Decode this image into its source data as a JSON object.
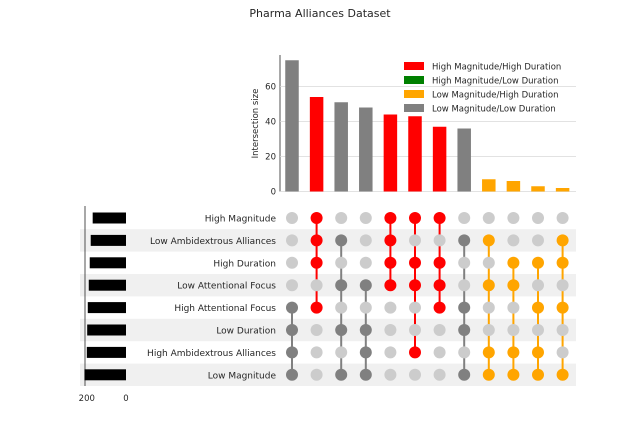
{
  "chart_data": {
    "type": "upset",
    "title": "Pharma Alliances Dataset",
    "ylabel": "Intersection size",
    "yticks": [
      0,
      20,
      40,
      60
    ],
    "ylim": [
      0,
      78
    ],
    "set_size_ticks": [
      200,
      0
    ],
    "set_size_max": 220,
    "legend": [
      {
        "label": "High Magnitude/High Duration",
        "color": "#ff0000"
      },
      {
        "label": "High Magnitude/Low Duration",
        "color": "#008000"
      },
      {
        "label": "Low Magnitude/High Duration",
        "color": "#ffa500"
      },
      {
        "label": "Low Magnitude/Low Duration",
        "color": "#808080"
      }
    ],
    "sets": [
      {
        "name": "High Magnitude",
        "size": 170
      },
      {
        "name": "Low Ambidextrous Alliances",
        "size": 180
      },
      {
        "name": "High Duration",
        "size": 185
      },
      {
        "name": "Low Attentional Focus",
        "size": 190
      },
      {
        "name": "High Attentional Focus",
        "size": 195
      },
      {
        "name": "Low Duration",
        "size": 198
      },
      {
        "name": "High Ambidextrous Alliances",
        "size": 200
      },
      {
        "name": "Low Magnitude",
        "size": 212
      }
    ],
    "intersections": [
      {
        "value": 75,
        "color": "#808080",
        "members": [
          4,
          5,
          6,
          7
        ]
      },
      {
        "value": 54,
        "color": "#ff0000",
        "members": [
          0,
          1,
          2,
          4
        ]
      },
      {
        "value": 51,
        "color": "#808080",
        "members": [
          1,
          3,
          5,
          7
        ]
      },
      {
        "value": 48,
        "color": "#808080",
        "members": [
          3,
          5,
          6,
          7
        ]
      },
      {
        "value": 44,
        "color": "#ff0000",
        "members": [
          0,
          1,
          2,
          3
        ]
      },
      {
        "value": 43,
        "color": "#ff0000",
        "members": [
          0,
          2,
          3,
          6
        ]
      },
      {
        "value": 37,
        "color": "#ff0000",
        "members": [
          0,
          2,
          3,
          4
        ]
      },
      {
        "value": 36,
        "color": "#808080",
        "members": [
          1,
          4,
          5,
          7
        ]
      },
      {
        "value": 7,
        "color": "#ffa500",
        "members": [
          1,
          3,
          6,
          7
        ]
      },
      {
        "value": 6,
        "color": "#ffa500",
        "members": [
          2,
          3,
          6,
          7
        ]
      },
      {
        "value": 3,
        "color": "#ffa500",
        "members": [
          2,
          4,
          6,
          7
        ]
      },
      {
        "value": 2,
        "color": "#ffa500",
        "members": [
          1,
          2,
          4,
          7
        ]
      }
    ]
  }
}
